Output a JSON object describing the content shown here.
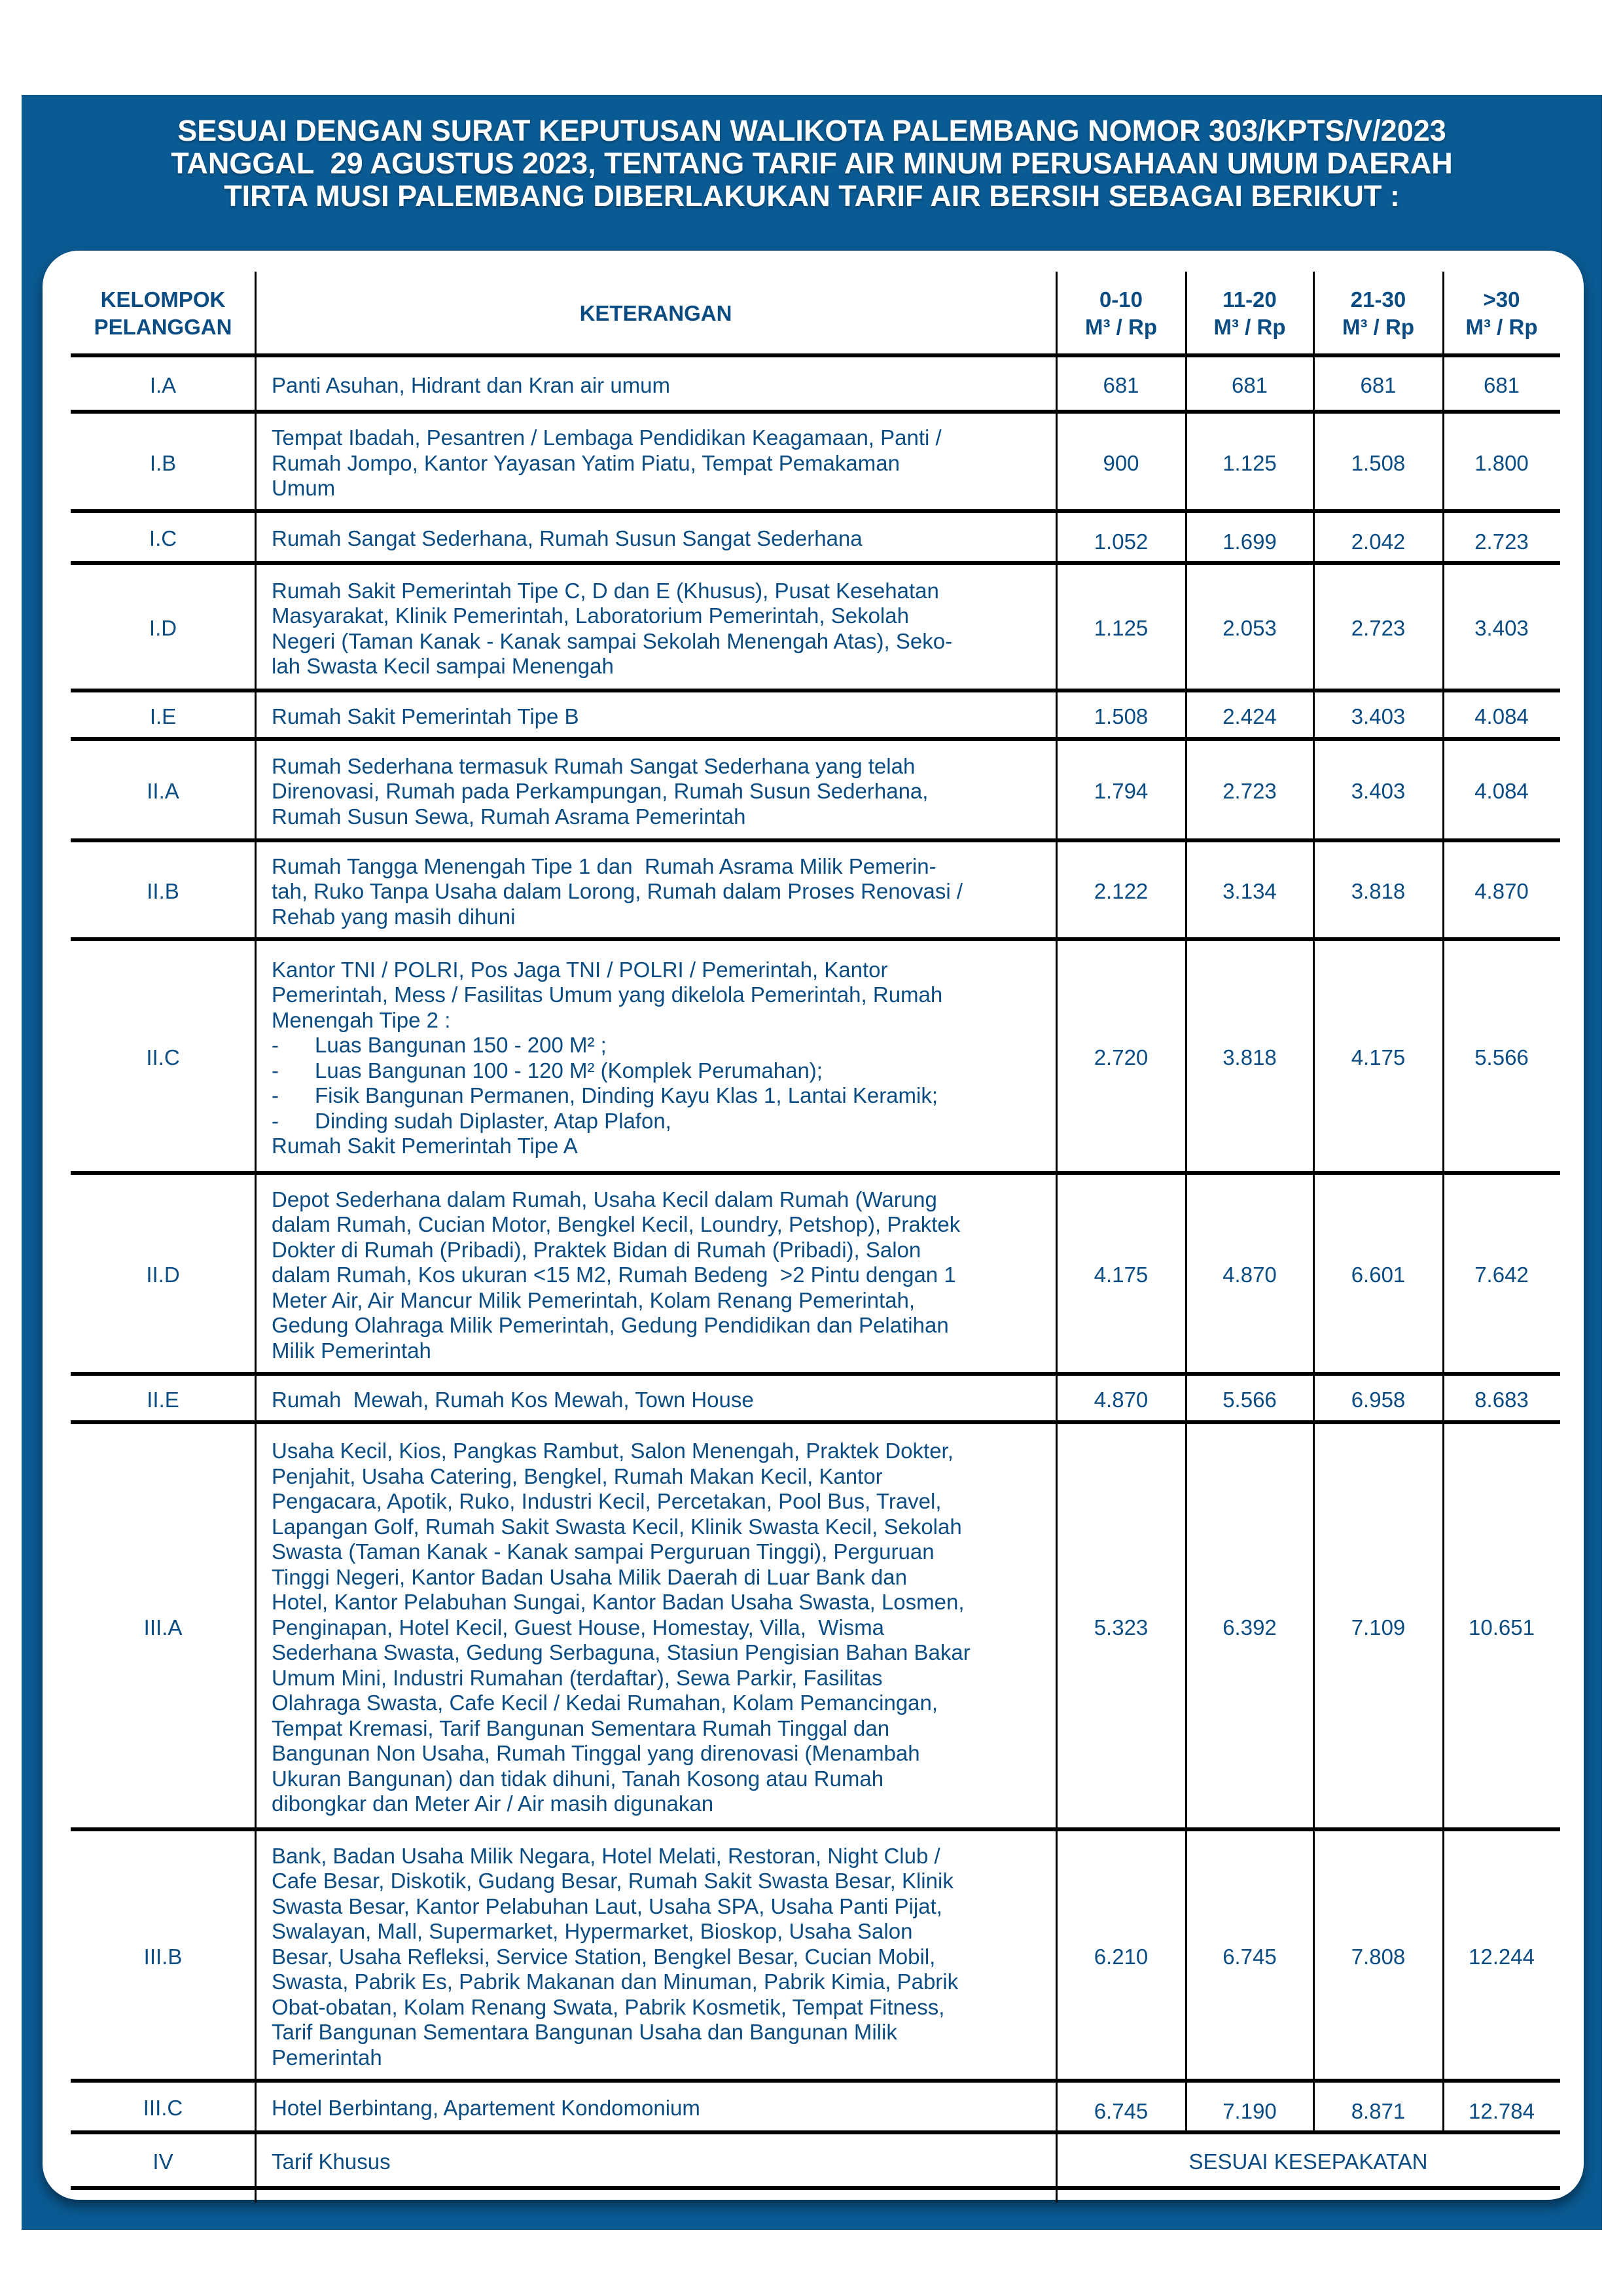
{
  "title": "SESUAI DENGAN SURAT KEPUTUSAN WALIKOTA PALEMBANG NOMOR 303/KPTS/V/2023\nTANGGAL  29 AGUSTUS 2023, TENTANG TARIF AIR MINUM PERUSAHAAN UMUM DAERAH\nTIRTA MUSI PALEMBANG DIBERLAKUKAN TARIF AIR BERSIH SEBAGAI BERIKUT :",
  "colors": {
    "panel": "#0a5a93",
    "text": "#0b4c82"
  },
  "table": {
    "headers": [
      "KELOMPOK\nPELANGGAN",
      "KETERANGAN",
      "0-10\nM³ / Rp",
      "11-20\nM³ / Rp",
      "21-30\nM³ / Rp",
      ">30\nM³ / Rp"
    ],
    "rows": [
      {
        "group": "I.A",
        "description": "Panti Asuhan, Hidrant dan Kran air umum",
        "tariffs": [
          "681",
          "681",
          "681",
          "681"
        ]
      },
      {
        "group": "I.B",
        "description": "Tempat Ibadah, Pesantren / Lembaga Pendidikan Keagamaan, Panti /\nRumah Jompo, Kantor Yayasan Yatim Piatu, Tempat Pemakaman\nUmum",
        "tariffs": [
          "900",
          "1.125",
          "1.508",
          "1.800"
        ]
      },
      {
        "group": "I.C",
        "description": "Rumah Sangat Sederhana, Rumah Susun Sangat Sederhana",
        "tariffs": [
          "1.052",
          "1.699",
          "2.042",
          "2.723"
        ]
      },
      {
        "group": "I.D",
        "description": "Rumah Sakit Pemerintah Tipe C, D dan E (Khusus), Pusat Kesehatan\nMasyarakat, Klinik Pemerintah, Laboratorium Pemerintah, Sekolah\nNegeri (Taman Kanak - Kanak sampai Sekolah Menengah Atas), Seko-\nlah Swasta Kecil sampai Menengah",
        "tariffs": [
          "1.125",
          "2.053",
          "2.723",
          "3.403"
        ]
      },
      {
        "group": "I.E",
        "description": "Rumah Sakit Pemerintah Tipe B",
        "tariffs": [
          "1.508",
          "2.424",
          "3.403",
          "4.084"
        ]
      },
      {
        "group": "II.A",
        "description": "Rumah Sederhana termasuk Rumah Sangat Sederhana yang telah\nDirenovasi, Rumah pada Perkampungan, Rumah Susun Sederhana,\nRumah Susun Sewa, Rumah Asrama Pemerintah",
        "tariffs": [
          "1.794",
          "2.723",
          "3.403",
          "4.084"
        ]
      },
      {
        "group": "II.B",
        "description": "Rumah Tangga Menengah Tipe 1 dan  Rumah Asrama Milik Pemerin-\ntah, Ruko Tanpa Usaha dalam Lorong, Rumah dalam Proses Renovasi /\nRehab yang masih dihuni",
        "tariffs": [
          "2.122",
          "3.134",
          "3.818",
          "4.870"
        ]
      },
      {
        "group": "II.C",
        "description": "Kantor TNI / POLRI, Pos Jaga TNI / POLRI / Pemerintah, Kantor\nPemerintah, Mess / Fasilitas Umum yang dikelola Pemerintah, Rumah\nMenengah Tipe 2 :\n-      Luas Bangunan 150 - 200 M² ;\n-      Luas Bangunan 100 - 120 M² (Komplek Perumahan);\n-      Fisik Bangunan Permanen, Dinding Kayu Klas 1, Lantai Keramik;\n-      Dinding sudah Diplaster, Atap Plafon,\nRumah Sakit Pemerintah Tipe A",
        "tariffs": [
          "2.720",
          "3.818",
          "4.175",
          "5.566"
        ]
      },
      {
        "group": "II.D",
        "description": "Depot Sederhana dalam Rumah, Usaha Kecil dalam Rumah (Warung\ndalam Rumah, Cucian Motor, Bengkel Kecil, Loundry, Petshop), Praktek\nDokter di Rumah (Pribadi), Praktek Bidan di Rumah (Pribadi), Salon\ndalam Rumah, Kos ukuran <15 M2, Rumah Bedeng  >2 Pintu dengan 1\nMeter Air, Air Mancur Milik Pemerintah, Kolam Renang Pemerintah,\nGedung Olahraga Milik Pemerintah, Gedung Pendidikan dan Pelatihan\nMilik Pemerintah",
        "tariffs": [
          "4.175",
          "4.870",
          "6.601",
          "7.642"
        ]
      },
      {
        "group": "II.E",
        "description": "Rumah  Mewah, Rumah Kos Mewah, Town House",
        "tariffs": [
          "4.870",
          "5.566",
          "6.958",
          "8.683"
        ]
      },
      {
        "group": "III.A",
        "description": "Usaha Kecil, Kios, Pangkas Rambut, Salon Menengah, Praktek Dokter,\nPenjahit, Usaha Catering, Bengkel, Rumah Makan Kecil, Kantor\nPengacara, Apotik, Ruko, Industri Kecil, Percetakan, Pool Bus, Travel,\nLapangan Golf, Rumah Sakit Swasta Kecil, Klinik Swasta Kecil, Sekolah\nSwasta (Taman Kanak - Kanak sampai Perguruan Tinggi), Perguruan\nTinggi Negeri, Kantor Badan Usaha Milik Daerah di Luar Bank dan\nHotel, Kantor Pelabuhan Sungai, Kantor Badan Usaha Swasta, Losmen,\nPenginapan, Hotel Kecil, Guest House, Homestay, Villa,  Wisma\nSederhana Swasta, Gedung Serbaguna, Stasiun Pengisian Bahan Bakar\nUmum Mini, Industri Rumahan (terdaftar), Sewa Parkir, Fasilitas\nOlahraga Swasta, Cafe Kecil / Kedai Rumahan, Kolam Pemancingan,\nTempat Kremasi, Tarif Bangunan Sementara Rumah Tinggal dan\nBangunan Non Usaha, Rumah Tinggal yang direnovasi (Menambah\nUkuran Bangunan) dan tidak dihuni, Tanah Kosong atau Rumah\ndibongkar dan Meter Air / Air masih digunakan",
        "tariffs": [
          "5.323",
          "6.392",
          "7.109",
          "10.651"
        ]
      },
      {
        "group": "III.B",
        "description": "Bank, Badan Usaha Milik Negara, Hotel Melati, Restoran, Night Club /\nCafe Besar, Diskotik, Gudang Besar, Rumah Sakit Swasta Besar, Klinik\nSwasta Besar, Kantor Pelabuhan Laut, Usaha SPA, Usaha Panti Pijat,\nSwalayan, Mall, Supermarket, Hypermarket, Bioskop, Usaha Salon\nBesar, Usaha Refleksi, Service Station, Bengkel Besar, Cucian Mobil,\nSwasta, Pabrik Es, Pabrik Makanan dan Minuman, Pabrik Kimia, Pabrik\nObat-obatan, Kolam Renang Swata, Pabrik Kosmetik, Tempat Fitness,\nTarif Bangunan Sementara Bangunan Usaha dan Bangunan Milik\nPemerintah",
        "tariffs": [
          "6.210",
          "6.745",
          "7.808",
          "12.244"
        ]
      },
      {
        "group": "III.C",
        "description": "Hotel Berbintang, Apartement Kondomonium",
        "tariffs": [
          "6.745",
          "7.190",
          "8.871",
          "12.784"
        ]
      },
      {
        "group": "IV",
        "description": "Tarif Khusus",
        "tariff_note": "SESUAI KESEPAKATAN"
      }
    ]
  }
}
